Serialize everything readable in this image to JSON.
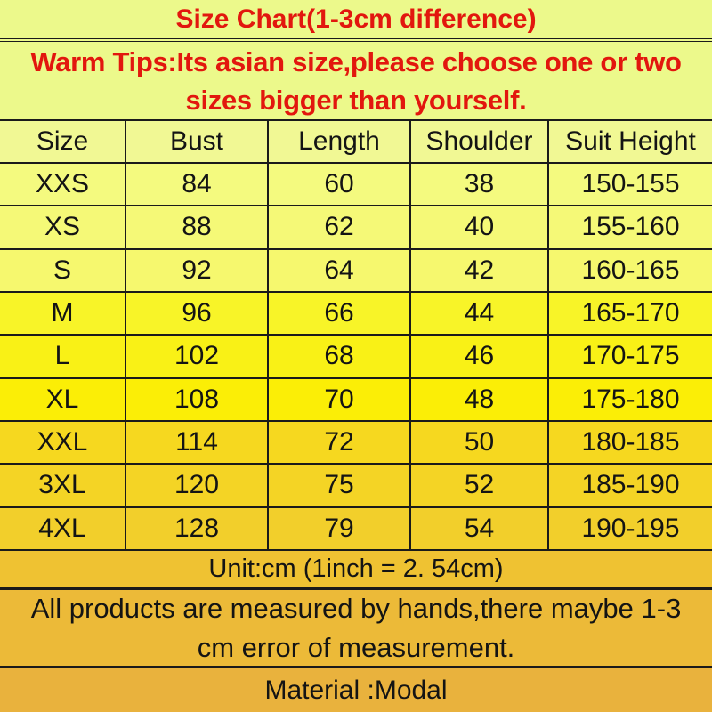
{
  "title": "Size Chart(1-3cm difference)",
  "warm_tips": "Warm Tips:Its asian size,please choose one or two sizes bigger than yourself.",
  "size_table": {
    "headers": [
      "Size",
      "Bust",
      "Length",
      "Shoulder",
      "Suit Height"
    ],
    "rows": [
      [
        "XXS",
        "84",
        "60",
        "38",
        "150-155"
      ],
      [
        "XS",
        "88",
        "62",
        "40",
        "155-160"
      ],
      [
        "S",
        "92",
        "64",
        "42",
        "160-165"
      ],
      [
        "M",
        "96",
        "66",
        "44",
        "165-170"
      ],
      [
        "L",
        "102",
        "68",
        "46",
        "170-175"
      ],
      [
        "XL",
        "108",
        "70",
        "48",
        "175-180"
      ],
      [
        "XXL",
        "114",
        "72",
        "50",
        "180-185"
      ],
      [
        "3XL",
        "120",
        "75",
        "52",
        "185-190"
      ],
      [
        "4XL",
        "128",
        "79",
        "54",
        "190-195"
      ]
    ]
  },
  "notes": {
    "unit": "Unit:cm (1inch = 2. 54cm)",
    "measurement": "All products are measured by hands,there maybe 1-3 cm error of measurement.",
    "material": "Material :Modal"
  },
  "colors": {
    "title_text": "#e2170e",
    "body_text": "#141414",
    "border": "#1a1a1a",
    "top_background": "#ecf98b",
    "header_background": "#f1f894",
    "row_backgrounds": [
      "#f4fa7f",
      "#f5f977",
      "#f6f86e",
      "#f8f428",
      "#f9f116",
      "#fbee06",
      "#f6d81f",
      "#f4d425",
      "#f2cf2b"
    ],
    "unit_background": "#efc232",
    "measurement_background": "#ecba38",
    "material_background": "#e9b23d"
  },
  "chart_data": {
    "type": "table",
    "title": "Size Chart(1-3cm difference)",
    "columns": [
      "Size",
      "Bust",
      "Length",
      "Shoulder",
      "Suit Height"
    ],
    "rows": [
      [
        "XXS",
        84,
        60,
        38,
        "150-155"
      ],
      [
        "XS",
        88,
        62,
        40,
        "155-160"
      ],
      [
        "S",
        92,
        64,
        42,
        "160-165"
      ],
      [
        "M",
        96,
        66,
        44,
        "165-170"
      ],
      [
        "L",
        102,
        68,
        46,
        "170-175"
      ],
      [
        "XL",
        108,
        70,
        48,
        "175-180"
      ],
      [
        "XXL",
        114,
        72,
        50,
        "180-185"
      ],
      [
        "3XL",
        120,
        75,
        52,
        "185-190"
      ],
      [
        "4XL",
        128,
        79,
        54,
        "190-195"
      ]
    ],
    "unit": "cm",
    "annotations": [
      "Warm Tips:Its asian size,please choose one or two sizes bigger than yourself.",
      "Unit:cm (1inch = 2. 54cm)",
      "All products are measured by hands,there maybe 1-3 cm error of measurement.",
      "Material :Modal"
    ]
  }
}
